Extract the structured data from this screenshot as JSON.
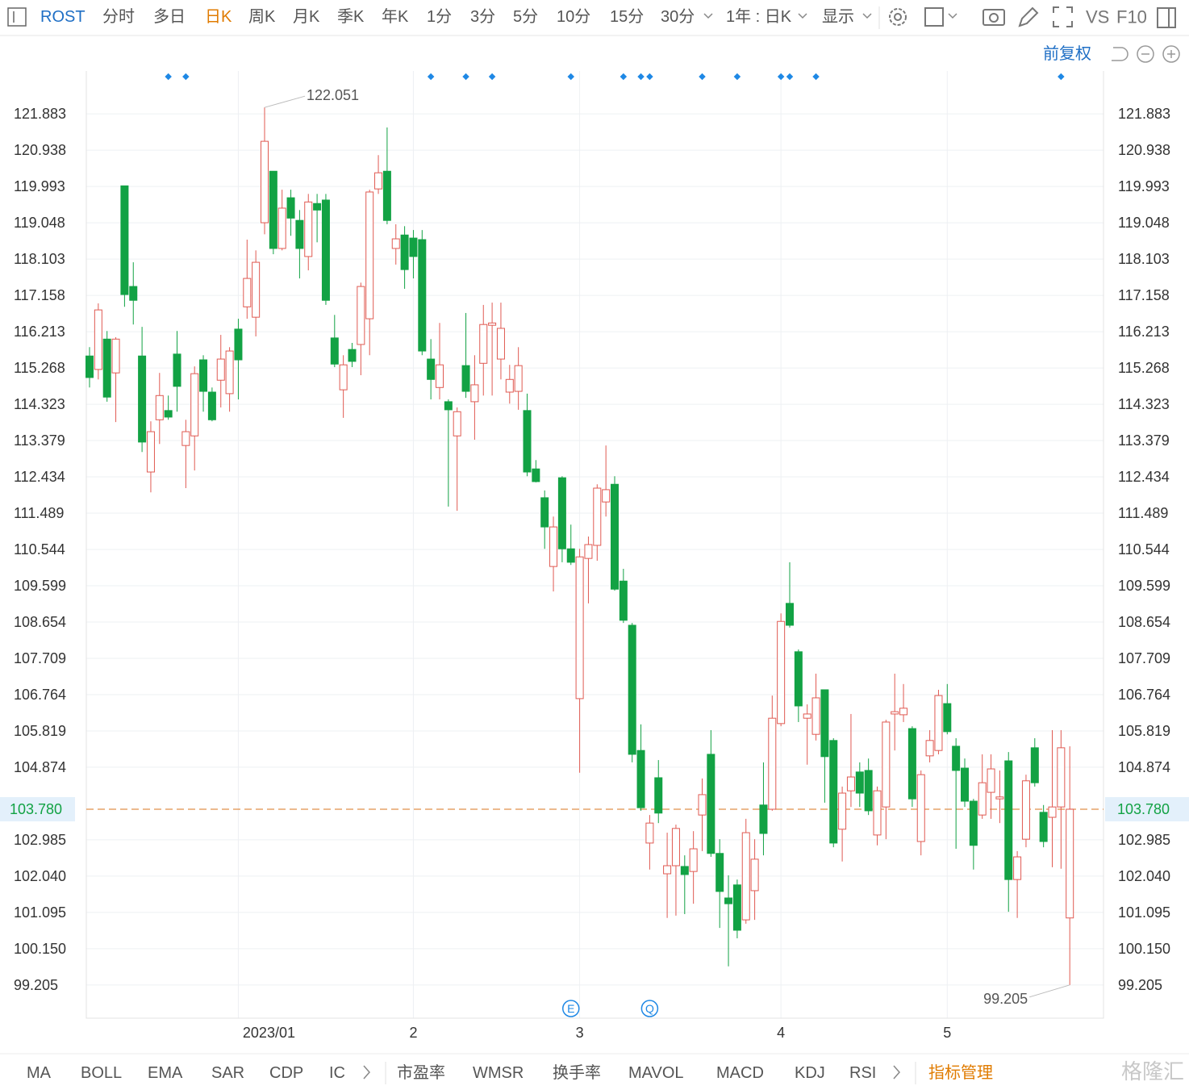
{
  "toolbar": {
    "symbol": "ROST",
    "periods": [
      "分时",
      "多日",
      "日K",
      "周K",
      "月K",
      "季K",
      "年K",
      "1分",
      "3分",
      "5分",
      "10分",
      "15分",
      "30分"
    ],
    "active_period": 2,
    "range_select": "1年 : 日K",
    "display": "显示",
    "vs": "VS",
    "f10": "F10",
    "adjust": "前复权"
  },
  "indicators": {
    "items": [
      "MA",
      "BOLL",
      "EMA",
      "SAR",
      "CDP",
      "IC",
      "市盈率",
      "WMSR",
      "换手率",
      "MAVOL",
      "MACD",
      "KDJ",
      "RSI"
    ],
    "manage": "指标管理",
    "watermark": "格隆汇"
  },
  "chart_data": {
    "type": "candlestick",
    "up_color": "#e05a52",
    "down_color": "#12a244",
    "grid": true,
    "categories": [
      null,
      null,
      null,
      null,
      null,
      null,
      null,
      null,
      null,
      null,
      null,
      null,
      null,
      null,
      null,
      null,
      null,
      "2023/01",
      null,
      null,
      null,
      null,
      null,
      null,
      null,
      null,
      null,
      null,
      null,
      null,
      null,
      null,
      null,
      null,
      null,
      null,
      null,
      "2",
      null,
      null,
      null,
      null,
      null,
      null,
      null,
      null,
      null,
      null,
      null,
      null,
      null,
      null,
      null,
      null,
      null,
      null,
      "3",
      null,
      null,
      null,
      null,
      null,
      null,
      null,
      null,
      null,
      null,
      null,
      null,
      null,
      null,
      null,
      null,
      null,
      null,
      null,
      null,
      null,
      null,
      "4",
      null,
      null,
      null,
      null,
      null,
      null,
      null,
      null,
      null,
      null,
      null,
      null,
      null,
      null,
      null,
      null,
      null,
      null,
      "5",
      null,
      null,
      null,
      null,
      null,
      null,
      null,
      null,
      null,
      null,
      null,
      null,
      null,
      null
    ],
    "open": [
      115.58,
      115.23,
      116.02,
      115.14,
      120.01,
      117.39,
      115.58,
      112.56,
      113.92,
      114.16,
      115.63,
      113.25,
      113.5,
      115.48,
      114.64,
      114.95,
      114.6,
      116.28,
      116.86,
      116.59,
      119.05,
      120.39,
      118.38,
      119.7,
      119.11,
      118.17,
      119.55,
      119.64,
      116.05,
      114.7,
      115.75,
      115.88,
      116.55,
      119.93,
      120.39,
      118.38,
      118.73,
      118.65,
      118.61,
      115.5,
      114.76,
      114.39,
      113.5,
      115.33,
      114.39,
      115.39,
      116.38,
      115.5,
      114.64,
      114.66,
      114.16,
      112.64,
      111.89,
      110.1,
      112.41,
      110.56,
      106.66,
      110.31,
      110.65,
      111.78,
      112.24,
      109.72,
      108.57,
      105.31,
      102.9,
      104.6,
      102.1,
      102.31,
      102.29,
      102.16,
      103.63,
      105.21,
      102.63,
      101.47,
      101.81,
      100.9,
      101.66,
      103.89,
      103.78,
      106.01,
      109.14,
      107.88,
      106.15,
      105.73,
      106.89,
      105.57,
      103.26,
      104.26,
      104.75,
      104.79,
      103.11,
      103.84,
      106.26,
      106.24,
      105.88,
      102.94,
      105.17,
      105.31,
      106.53,
      105.42,
      104.85,
      103.99,
      103.63,
      104.22,
      104.05,
      105.04,
      101.95,
      103.0,
      105.38,
      103.7,
      103.57,
      103.84,
      100.95
    ],
    "high": [
      115.81,
      116.95,
      116.23,
      116.07,
      120.01,
      118.02,
      116.34,
      113.88,
      115.14,
      114.55,
      116.23,
      113.92,
      115.31,
      115.6,
      114.76,
      116.13,
      115.81,
      116.55,
      118.61,
      118.33,
      122.051,
      120.39,
      119.91,
      119.91,
      119.38,
      119.8,
      119.8,
      119.8,
      116.65,
      115.6,
      115.92,
      117.49,
      119.91,
      120.81,
      121.53,
      119.01,
      118.96,
      118.86,
      118.86,
      116.02,
      116.44,
      114.45,
      114.24,
      116.7,
      115.6,
      116.91,
      116.97,
      116.97,
      115.35,
      115.81,
      114.6,
      112.87,
      112.08,
      111.4,
      112.45,
      111.19,
      110.56,
      110.88,
      112.24,
      113.25,
      112.45,
      110.04,
      108.63,
      105.99,
      103.63,
      105.06,
      103.17,
      103.38,
      102.58,
      103.21,
      104.58,
      105.84,
      103.0,
      102.06,
      101.95,
      103.53,
      103.0,
      105.0,
      106.74,
      108.88,
      110.21,
      107.94,
      106.51,
      107.31,
      106.89,
      105.63,
      104.37,
      106.26,
      105.0,
      105.1,
      104.37,
      106.11,
      107.31,
      107.04,
      105.94,
      104.79,
      105.84,
      106.89,
      107.04,
      105.63,
      105.1,
      104.05,
      105.21,
      105.21,
      104.79,
      105.27,
      102.69,
      104.68,
      105.63,
      103.89,
      105.84,
      105.84,
      105.42
    ],
    "low": [
      114.76,
      114.97,
      114.39,
      113.86,
      116.86,
      116.4,
      113.08,
      112.03,
      113.29,
      113.92,
      114.13,
      112.14,
      112.6,
      114.13,
      113.88,
      114.24,
      114.13,
      114.45,
      116.55,
      116.09,
      118.75,
      118.23,
      118.33,
      118.71,
      117.6,
      117.81,
      118.54,
      116.91,
      115.29,
      113.97,
      115.29,
      115.08,
      115.6,
      119.8,
      119.01,
      117.96,
      117.33,
      117.6,
      115.6,
      114.45,
      114.45,
      111.66,
      111.55,
      114.49,
      113.4,
      114.55,
      114.55,
      114.97,
      114.34,
      114.18,
      112.45,
      112.29,
      110.56,
      109.45,
      110.21,
      110.14,
      104.73,
      109.14,
      110.25,
      111.4,
      109.47,
      108.63,
      105.0,
      103.74,
      102.21,
      103.42,
      100.95,
      101.01,
      101.05,
      101.32,
      102.69,
      102.54,
      100.69,
      99.69,
      100.42,
      100.8,
      100.9,
      102.58,
      103.74,
      105.94,
      108.51,
      106.05,
      104.94,
      105.57,
      103.95,
      102.79,
      102.42,
      103.84,
      103.84,
      103.63,
      102.84,
      103.0,
      105.31,
      106.05,
      103.84,
      102.58,
      105.0,
      105.21,
      105.73,
      102.75,
      103.84,
      102.21,
      103.53,
      103.53,
      103.42,
      101.11,
      100.95,
      102.79,
      104.37,
      102.79,
      102.27,
      102.23,
      99.205
    ],
    "close": [
      115.02,
      116.78,
      114.51,
      116.02,
      117.18,
      117.03,
      113.34,
      113.61,
      114.55,
      113.99,
      114.79,
      113.61,
      115.12,
      114.66,
      113.92,
      115.5,
      115.71,
      115.48,
      117.6,
      118.02,
      121.17,
      118.38,
      119.43,
      119.17,
      118.38,
      119.59,
      119.38,
      117.03,
      115.37,
      115.35,
      115.44,
      117.39,
      119.85,
      120.35,
      119.11,
      118.63,
      117.83,
      118.17,
      115.71,
      114.97,
      115.35,
      114.18,
      114.13,
      114.66,
      114.83,
      116.4,
      116.44,
      116.3,
      114.97,
      115.33,
      112.56,
      112.31,
      111.13,
      111.13,
      110.56,
      110.21,
      110.35,
      110.67,
      112.14,
      112.1,
      109.51,
      108.7,
      105.21,
      103.82,
      103.42,
      103.68,
      102.31,
      103.28,
      102.08,
      102.75,
      104.16,
      102.63,
      101.64,
      101.32,
      100.63,
      103.17,
      102.48,
      103.15,
      106.15,
      108.67,
      108.57,
      106.47,
      106.26,
      106.68,
      105.15,
      102.9,
      104.2,
      104.62,
      104.2,
      103.74,
      104.26,
      106.05,
      106.32,
      106.41,
      104.05,
      104.68,
      105.57,
      106.74,
      105.8,
      104.79,
      103.99,
      102.84,
      104.47,
      104.83,
      104.1,
      101.95,
      102.54,
      104.52,
      104.47,
      102.94,
      103.84,
      105.38,
      103.78
    ],
    "ylim": [
      98.34,
      123.0
    ],
    "yticks": [
      99.205,
      {
        "value": 100.15,
        "label": "100.150"
      },
      101.095,
      {
        "value": 102.04,
        "label": "102.040"
      },
      102.985,
      104.874,
      105.819,
      106.764,
      107.709,
      108.654,
      109.599,
      110.544,
      111.489,
      112.434,
      113.379,
      114.323,
      115.268,
      116.213,
      117.158,
      118.103,
      119.048,
      119.993,
      120.938,
      121.883
    ],
    "current_price": {
      "value": 103.78,
      "label": "103.780"
    },
    "events": [
      9,
      11,
      39,
      43,
      46,
      55,
      61,
      63,
      64,
      70,
      74,
      79,
      80,
      83,
      111
    ],
    "bottom_events": [
      {
        "label": "E",
        "index": 55
      },
      {
        "label": "Q",
        "index": 64
      }
    ]
  }
}
